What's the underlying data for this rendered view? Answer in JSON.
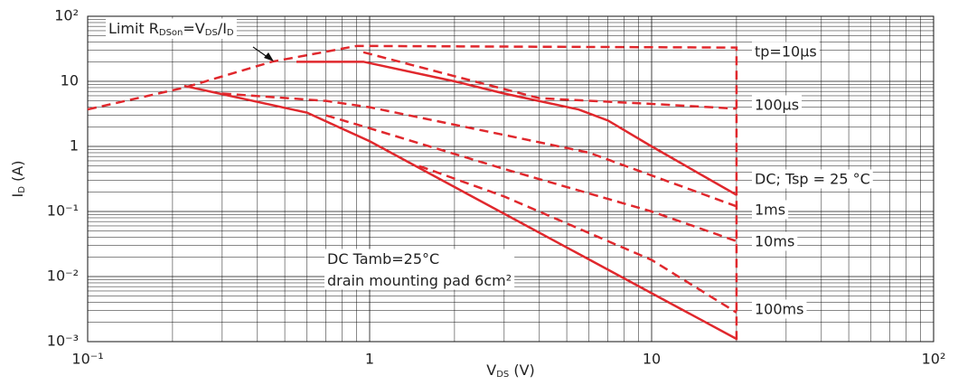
{
  "chart_data": {
    "type": "line",
    "log_x": true,
    "log_y": true,
    "grid": true,
    "x_label": [
      "V",
      "DS",
      " (V)"
    ],
    "y_label": [
      "I",
      "D",
      " (A)"
    ],
    "xlim": [
      0.1,
      100
    ],
    "ylim": [
      0.001,
      100
    ],
    "xticks": [
      {
        "value": 0.1,
        "label": "10⁻¹"
      },
      1,
      10,
      {
        "value": 100,
        "label": "10²"
      }
    ],
    "yticks": [
      {
        "value": 0.001,
        "label": "10⁻³"
      },
      {
        "value": 0.01,
        "label": "10⁻²"
      },
      {
        "value": 0.1,
        "label": "10⁻¹"
      },
      1,
      10,
      {
        "value": 100,
        "label": "10²"
      }
    ],
    "color": "#e0282d",
    "series": [
      {
        "name": "tp=10µs",
        "linestyle": "dashed",
        "x": [
          0.1,
          0.22,
          0.45,
          0.9,
          20,
          20
        ],
        "values": [
          3.7,
          8,
          20,
          35,
          33,
          0.001
        ]
      },
      {
        "name": "100µs",
        "linestyle": "dashed",
        "x": [
          0.95,
          2,
          4,
          10,
          20
        ],
        "values": [
          28,
          12,
          5.5,
          4.5,
          3.8
        ]
      },
      {
        "name": "DC; Tsp = 25 °C",
        "linestyle": "solid",
        "x": [
          0.55,
          0.95,
          2,
          3,
          5.5,
          7,
          10,
          20
        ],
        "values": [
          20,
          20,
          10,
          6.5,
          3.7,
          2.5,
          1,
          0.18
        ]
      },
      {
        "name": "1ms",
        "linestyle": "dashed",
        "x": [
          0.3,
          0.7,
          1,
          3,
          6,
          20
        ],
        "values": [
          6.5,
          5,
          4,
          1.5,
          0.8,
          0.12
        ]
      },
      {
        "name": "10ms",
        "linestyle": "dashed",
        "x": [
          0.7,
          1,
          3,
          10,
          20
        ],
        "values": [
          3,
          1.9,
          0.45,
          0.1,
          0.035
        ]
      },
      {
        "name": "100ms",
        "linestyle": "dashed",
        "x": [
          1.5,
          3,
          10,
          20
        ],
        "values": [
          0.5,
          0.17,
          0.018,
          0.0028
        ]
      },
      {
        "name": [
          "DC Tamb=25°C",
          "drain mounting pad 6cm²"
        ],
        "linestyle": "solid",
        "x": [
          0.22,
          0.6,
          1,
          20
        ],
        "values": [
          8.5,
          3.3,
          1.2,
          0.0011
        ]
      }
    ],
    "annotation": [
      "Limit R",
      "DSon",
      "=V",
      "DS",
      "/I",
      "D"
    ]
  }
}
